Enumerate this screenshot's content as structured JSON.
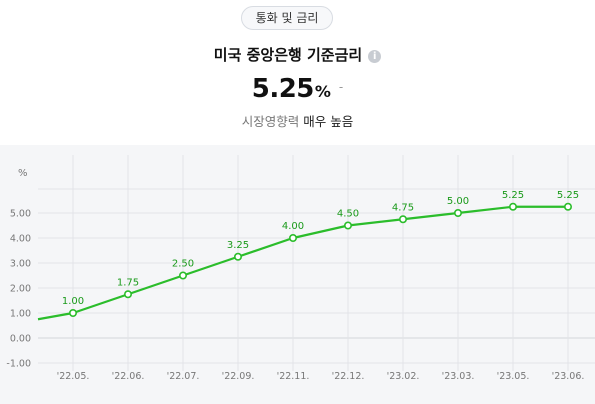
{
  "header": {
    "category_pill": "통화 및 금리",
    "title": "미국 중앙은행 기준금리",
    "info_icon": "info-icon"
  },
  "summary": {
    "value": "5.25",
    "unit": "%",
    "change": "-",
    "influence_label": "시장영향력",
    "influence_level": "매우 높음"
  },
  "colors": {
    "line": "#2bbd2b",
    "label": "#1a9a1a",
    "grid": "#e2e4e8",
    "axis_text": "#777777",
    "chart_bg": "#f5f6f8"
  },
  "chart_data": {
    "type": "line",
    "unit_label": "%",
    "categories": [
      "'22.05.",
      "'22.06.",
      "'22.07.",
      "'22.09.",
      "'22.11.",
      "'22.12.",
      "'23.02.",
      "'23.03.",
      "'23.05.",
      "'23.06."
    ],
    "values": [
      1.0,
      1.75,
      2.5,
      3.25,
      4.0,
      4.5,
      4.75,
      5.0,
      5.25,
      5.25
    ],
    "data_labels": [
      "1.00",
      "1.75",
      "2.50",
      "3.25",
      "4.00",
      "4.50",
      "4.75",
      "5.00",
      "5.25",
      "5.25"
    ],
    "y_ticks": [
      -1.0,
      0.0,
      1.0,
      2.0,
      3.0,
      4.0,
      5.0
    ],
    "y_tick_labels": [
      "-1.00",
      "0.00",
      "1.00",
      "2.00",
      "3.00",
      "4.00",
      "5.00"
    ],
    "ylim": [
      -1.0,
      5.8
    ],
    "grid": true,
    "line_extends_left_to": 0.75
  }
}
